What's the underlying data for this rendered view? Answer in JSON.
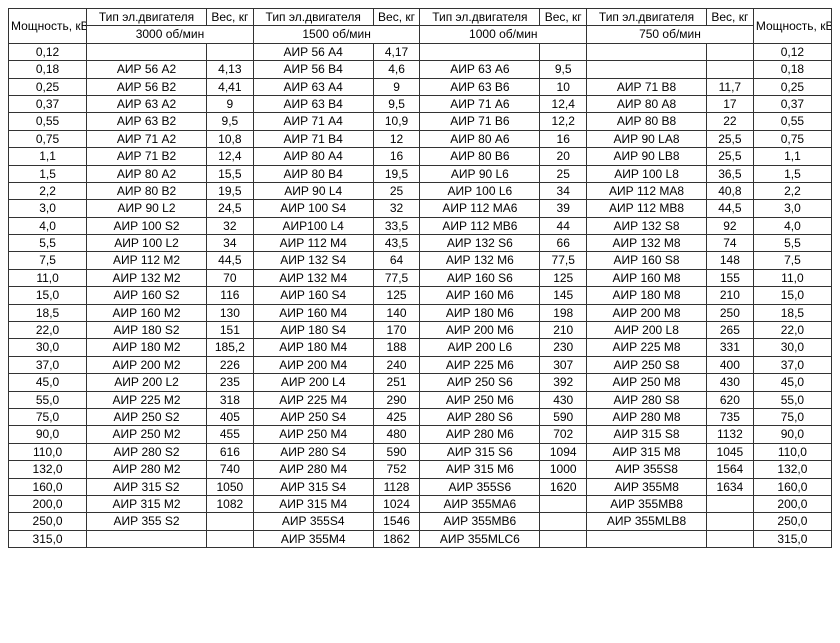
{
  "headers": {
    "power": "Мощность, кВт",
    "motor_type": "Тип эл.двигателя",
    "weight": "Вес, кг"
  },
  "rpm_labels": [
    "3000 об/мин",
    "1500 об/мин",
    "1000 об/мин",
    "750 об/мин"
  ],
  "rows": [
    {
      "p": "0,12",
      "m1": "",
      "w1": "",
      "m2": "АИР 56 А4",
      "w2": "4,17",
      "m3": "",
      "w3": "",
      "m4": "",
      "w4": ""
    },
    {
      "p": "0,18",
      "m1": "АИР 56 А2",
      "w1": "4,13",
      "m2": "АИР 56 В4",
      "w2": "4,6",
      "m3": "АИР 63 А6",
      "w3": "9,5",
      "m4": "",
      "w4": ""
    },
    {
      "p": "0,25",
      "m1": "АИР 56 В2",
      "w1": "4,41",
      "m2": "АИР 63 А4",
      "w2": "9",
      "m3": "АИР 63 В6",
      "w3": "10",
      "m4": "АИР 71 В8",
      "w4": "11,7"
    },
    {
      "p": "0,37",
      "m1": "АИР 63 А2",
      "w1": "9",
      "m2": "АИР 63 В4",
      "w2": "9,5",
      "m3": "АИР 71 А6",
      "w3": "12,4",
      "m4": "АИР 80 А8",
      "w4": "17"
    },
    {
      "p": "0,55",
      "m1": "АИР 63 В2",
      "w1": "9,5",
      "m2": "АИР 71 А4",
      "w2": "10,9",
      "m3": "АИР 71 В6",
      "w3": "12,2",
      "m4": "АИР 80 В8",
      "w4": "22"
    },
    {
      "p": "0,75",
      "m1": "АИР 71 А2",
      "w1": "10,8",
      "m2": "АИР 71 В4",
      "w2": "12",
      "m3": "АИР 80 А6",
      "w3": "16",
      "m4": "АИР 90 LA8",
      "w4": "25,5"
    },
    {
      "p": "1,1",
      "m1": "АИР 71 В2",
      "w1": "12,4",
      "m2": "АИР 80 А4",
      "w2": "16",
      "m3": "АИР 80 В6",
      "w3": "20",
      "m4": "АИР 90 LB8",
      "w4": "25,5"
    },
    {
      "p": "1,5",
      "m1": "АИР 80 А2",
      "w1": "15,5",
      "m2": "АИР 80 В4",
      "w2": "19,5",
      "m3": "АИР 90 L6",
      "w3": "25",
      "m4": "АИР 100 L8",
      "w4": "36,5"
    },
    {
      "p": "2,2",
      "m1": "АИР 80 В2",
      "w1": "19,5",
      "m2": "АИР 90 L4",
      "w2": "25",
      "m3": "АИР 100 L6",
      "w3": "34",
      "m4": "АИР 112 МА8",
      "w4": "40,8"
    },
    {
      "p": "3,0",
      "m1": "АИР 90 L2",
      "w1": "24,5",
      "m2": "АИР 100 S4",
      "w2": "32",
      "m3": "АИР 112 МА6",
      "w3": "39",
      "m4": "АИР 112 МВ8",
      "w4": "44,5"
    },
    {
      "p": "4,0",
      "m1": "АИР 100 S2",
      "w1": "32",
      "m2": "АИР100 L4",
      "w2": "33,5",
      "m3": "АИР 112 МВ6",
      "w3": "44",
      "m4": "АИР 132 S8",
      "w4": "92"
    },
    {
      "p": "5,5",
      "m1": "АИР 100 L2",
      "w1": "34",
      "m2": "АИР 112 М4",
      "w2": "43,5",
      "m3": "АИР 132 S6",
      "w3": "66",
      "m4": "АИР 132 М8",
      "w4": "74"
    },
    {
      "p": "7,5",
      "m1": "АИР 112 М2",
      "w1": "44,5",
      "m2": "АИР 132 S4",
      "w2": "64",
      "m3": "АИР 132 М6",
      "w3": "77,5",
      "m4": "АИР 160 S8",
      "w4": "148"
    },
    {
      "p": "11,0",
      "m1": "АИР 132 М2",
      "w1": "70",
      "m2": "АИР 132 М4",
      "w2": "77,5",
      "m3": "АИР 160 S6",
      "w3": "125",
      "m4": "АИР 160 М8",
      "w4": "155"
    },
    {
      "p": "15,0",
      "m1": "АИР 160 S2",
      "w1": "116",
      "m2": "АИР 160 S4",
      "w2": "125",
      "m3": "АИР 160 М6",
      "w3": "145",
      "m4": "АИР 180 М8",
      "w4": "210"
    },
    {
      "p": "18,5",
      "m1": "АИР 160 М2",
      "w1": "130",
      "m2": "АИР 160 М4",
      "w2": "140",
      "m3": "АИР 180 М6",
      "w3": "198",
      "m4": "АИР 200 М8",
      "w4": "250"
    },
    {
      "p": "22,0",
      "m1": "АИР 180 S2",
      "w1": "151",
      "m2": "АИР 180 S4",
      "w2": "170",
      "m3": "АИР 200 М6",
      "w3": "210",
      "m4": "АИР 200 L8",
      "w4": "265"
    },
    {
      "p": "30,0",
      "m1": "АИР 180 М2",
      "w1": "185,2",
      "m2": "АИР 180 М4",
      "w2": "188",
      "m3": "АИР 200 L6",
      "w3": "230",
      "m4": "АИР 225 М8",
      "w4": "331"
    },
    {
      "p": "37,0",
      "m1": "АИР 200 М2",
      "w1": "226",
      "m2": "АИР 200 М4",
      "w2": "240",
      "m3": "АИР 225 М6",
      "w3": "307",
      "m4": "АИР 250 S8",
      "w4": "400"
    },
    {
      "p": "45,0",
      "m1": "АИР 200 L2",
      "w1": "235",
      "m2": "АИР 200 L4",
      "w2": "251",
      "m3": "АИР 250 S6",
      "w3": "392",
      "m4": "АИР 250 М8",
      "w4": "430"
    },
    {
      "p": "55,0",
      "m1": "АИР 225 М2",
      "w1": "318",
      "m2": "АИР 225 М4",
      "w2": "290",
      "m3": "АИР 250 М6",
      "w3": "430",
      "m4": "АИР 280 S8",
      "w4": "620"
    },
    {
      "p": "75,0",
      "m1": "АИР 250 S2",
      "w1": "405",
      "m2": "АИР 250 S4",
      "w2": "425",
      "m3": "АИР 280 S6",
      "w3": "590",
      "m4": "АИР 280 М8",
      "w4": "735"
    },
    {
      "p": "90,0",
      "m1": "АИР 250 М2",
      "w1": "455",
      "m2": "АИР 250 М4",
      "w2": "480",
      "m3": "АИР 280 М6",
      "w3": "702",
      "m4": "АИР 315 S8",
      "w4": "1132"
    },
    {
      "p": "110,0",
      "m1": "АИР 280 S2",
      "w1": "616",
      "m2": "АИР 280 S4",
      "w2": "590",
      "m3": "АИР 315 S6",
      "w3": "1094",
      "m4": "АИР 315 М8",
      "w4": "1045"
    },
    {
      "p": "132,0",
      "m1": "АИР 280 М2",
      "w1": "740",
      "m2": "АИР 280 М4",
      "w2": "752",
      "m3": "АИР 315 М6",
      "w3": "1000",
      "m4": "АИР 355S8",
      "w4": "1564"
    },
    {
      "p": "160,0",
      "m1": "АИР 315 S2",
      "w1": "1050",
      "m2": "АИР 315 S4",
      "w2": "1128",
      "m3": "АИР 355S6",
      "w3": "1620",
      "m4": "АИР 355М8",
      "w4": "1634"
    },
    {
      "p": "200,0",
      "m1": "АИР 315 М2",
      "w1": "1082",
      "m2": "АИР 315 М4",
      "w2": "1024",
      "m3": "АИР 355МА6",
      "w3": "",
      "m4": "АИР 355МВ8",
      "w4": ""
    },
    {
      "p": "250,0",
      "m1": "АИР 355 S2",
      "w1": "",
      "m2": "АИР 355S4",
      "w2": "1546",
      "m3": "АИР 355МВ6",
      "w3": "",
      "m4": "АИР 355МLB8",
      "w4": ""
    },
    {
      "p": "315,0",
      "m1": "",
      "w1": "",
      "m2": "АИР 355М4",
      "w2": "1862",
      "m3": "АИР 355МLС6",
      "w3": "",
      "m4": "",
      "w4": ""
    }
  ]
}
